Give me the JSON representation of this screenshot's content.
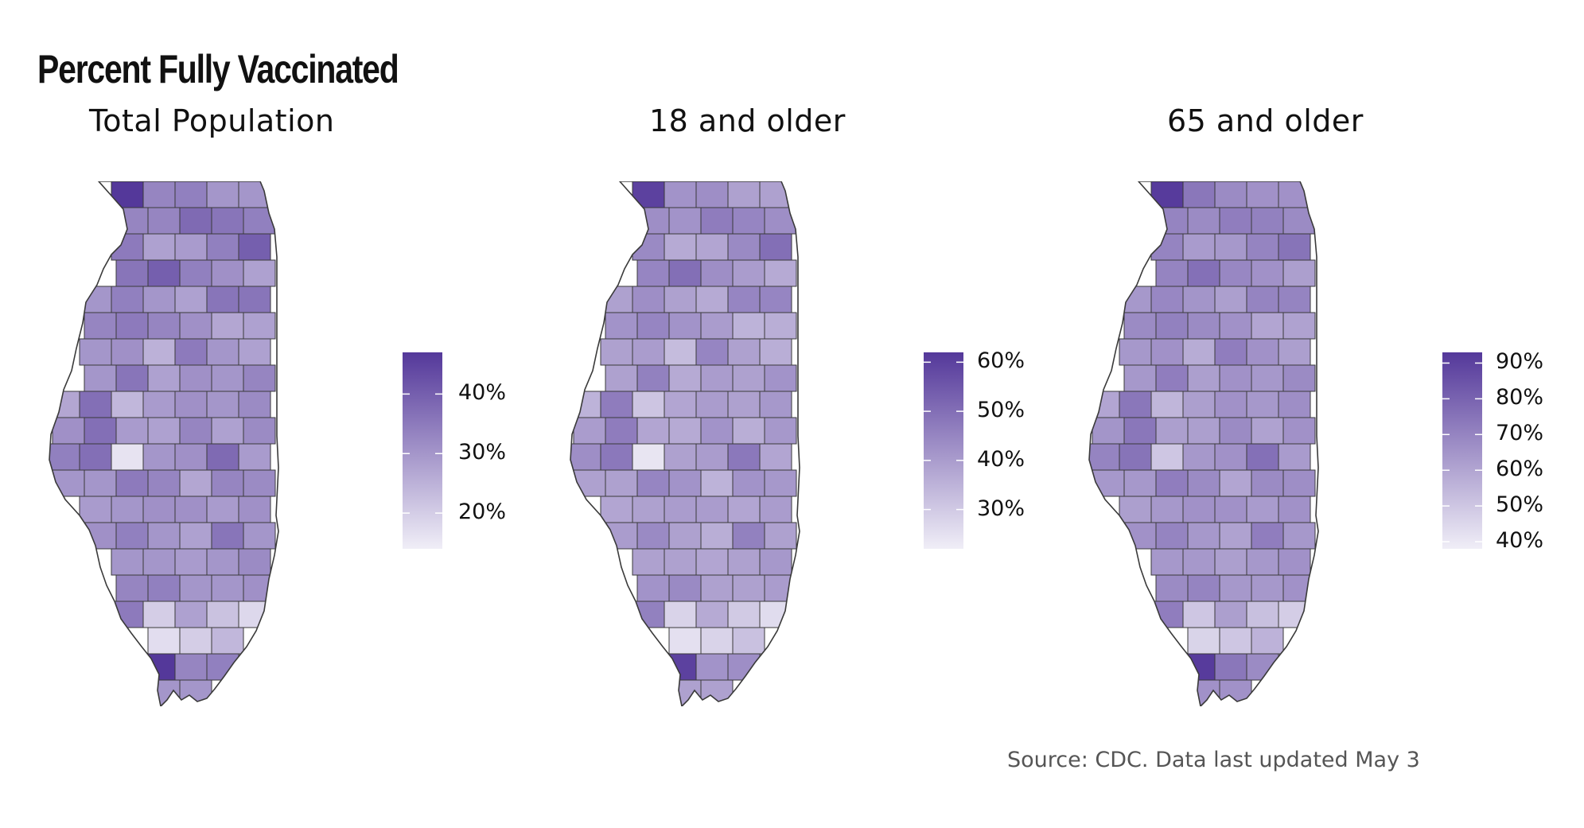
{
  "title": "Percent Fully Vaccinated",
  "source": "Source: CDC. Data last updated May 3",
  "colors": {
    "low": "#f0eef7",
    "high": "#54389a",
    "border": "#3a3a3a"
  },
  "panels": [
    {
      "title": "Total Population",
      "legend": {
        "min": 14,
        "max": 47,
        "ticks": [
          20,
          30,
          40
        ],
        "tick_labels": [
          "20%",
          "30%",
          "40%"
        ]
      },
      "values": [
        47,
        33,
        34,
        30,
        30,
        33,
        33,
        38,
        36,
        34,
        35,
        28,
        29,
        34,
        40,
        36,
        40,
        34,
        31,
        28,
        30,
        34,
        30,
        28,
        36,
        36,
        33,
        35,
        33,
        31,
        27,
        28,
        30,
        31,
        25,
        35,
        30,
        28,
        30,
        36,
        28,
        31,
        30,
        33,
        27,
        37,
        24,
        29,
        31,
        30,
        32,
        31,
        37,
        29,
        28,
        33,
        28,
        32,
        34,
        37,
        16,
        30,
        31,
        38,
        29,
        30,
        30,
        35,
        33,
        27,
        33,
        32,
        29,
        30,
        31,
        31,
        29,
        31,
        31,
        34,
        30,
        28,
        36,
        30,
        30,
        30,
        29,
        30,
        32,
        33,
        34,
        30,
        30,
        31,
        35,
        20,
        28,
        22,
        18,
        17,
        20,
        24
      ]
    },
    {
      "title": "18 and older",
      "legend": {
        "min": 22,
        "max": 62,
        "ticks": [
          30,
          40,
          50,
          60
        ],
        "tick_labels": [
          "30%",
          "40%",
          "50%",
          "60%"
        ]
      },
      "values": [
        60,
        42,
        43,
        39,
        39,
        43,
        42,
        47,
        45,
        43,
        44,
        37,
        38,
        44,
        50,
        45,
        50,
        43,
        40,
        37,
        39,
        43,
        39,
        37,
        45,
        45,
        42,
        45,
        42,
        40,
        35,
        36,
        39,
        40,
        33,
        45,
        39,
        36,
        39,
        46,
        37,
        40,
        39,
        42,
        35,
        47,
        31,
        38,
        40,
        39,
        41,
        40,
        47,
        38,
        37,
        42,
        36,
        41,
        43,
        48,
        24,
        39,
        40,
        48,
        38,
        39,
        39,
        45,
        42,
        35,
        42,
        41,
        38,
        39,
        40,
        40,
        38,
        40,
        40,
        44,
        39,
        36,
        46,
        39,
        39,
        39,
        38,
        39,
        41,
        42,
        44,
        39,
        39,
        40,
        46,
        28,
        37,
        30,
        26,
        25,
        28,
        32
      ]
    },
    {
      "title": "65 and older",
      "legend": {
        "min": 38,
        "max": 93,
        "ticks": [
          40,
          50,
          60,
          70,
          80,
          90
        ],
        "tick_labels": [
          "40%",
          "50%",
          "60%",
          "70%",
          "80%",
          "90%"
        ]
      },
      "values": [
        92,
        74,
        68,
        66,
        66,
        70,
        68,
        72,
        71,
        68,
        70,
        63,
        64,
        70,
        75,
        70,
        76,
        69,
        66,
        62,
        64,
        69,
        65,
        62,
        70,
        70,
        68,
        71,
        68,
        66,
        60,
        61,
        64,
        66,
        58,
        72,
        66,
        62,
        64,
        72,
        62,
        66,
        64,
        68,
        60,
        74,
        55,
        62,
        66,
        64,
        67,
        65,
        74,
        62,
        62,
        68,
        61,
        66,
        70,
        75,
        50,
        64,
        66,
        76,
        63,
        64,
        64,
        72,
        68,
        60,
        68,
        67,
        62,
        64,
        66,
        66,
        63,
        66,
        66,
        70,
        64,
        61,
        72,
        64,
        64,
        64,
        62,
        64,
        66,
        68,
        70,
        64,
        64,
        66,
        72,
        50,
        62,
        52,
        48,
        46,
        50,
        56
      ]
    }
  ]
}
